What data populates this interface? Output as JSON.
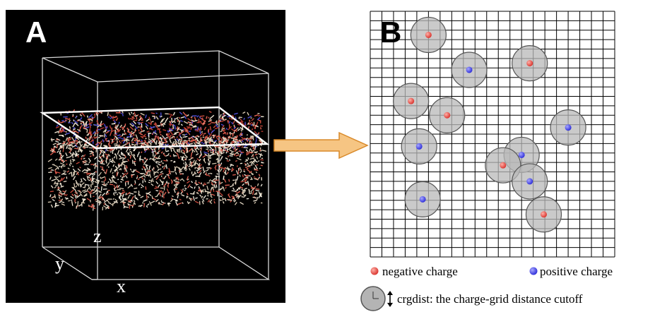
{
  "panel_a": {
    "label": "A",
    "axes": {
      "x": "x",
      "y": "y",
      "z": "z"
    }
  },
  "panel_b": {
    "label": "B",
    "grid": {
      "columns": 21,
      "rows": 26
    },
    "charges": [
      {
        "type": "negative",
        "col": 5.0,
        "row": 2.5
      },
      {
        "type": "positive",
        "col": 8.5,
        "row": 6.2
      },
      {
        "type": "negative",
        "col": 13.7,
        "row": 5.5
      },
      {
        "type": "negative",
        "col": 3.5,
        "row": 9.5
      },
      {
        "type": "negative",
        "col": 6.6,
        "row": 11.0
      },
      {
        "type": "positive",
        "col": 4.2,
        "row": 14.3
      },
      {
        "type": "positive",
        "col": 17.0,
        "row": 12.3
      },
      {
        "type": "positive",
        "col": 13.0,
        "row": 15.2
      },
      {
        "type": "negative",
        "col": 11.4,
        "row": 16.3
      },
      {
        "type": "positive",
        "col": 13.7,
        "row": 18.0
      },
      {
        "type": "positive",
        "col": 4.5,
        "row": 19.9
      },
      {
        "type": "negative",
        "col": 14.9,
        "row": 21.5
      }
    ]
  },
  "legend": {
    "negative_label": "negative charge",
    "positive_label": "positive charge",
    "cutoff_label": "crgdist: the charge-grid distance cutoff"
  },
  "colors": {
    "negative": "#e0403a",
    "positive": "#3a3ae8",
    "grid": "#000000",
    "circle_fill": "#b8b8b8",
    "arrow_fill": "#f6c583",
    "arrow_stroke": "#d98a2a",
    "panel_a_bg": "#000000"
  }
}
